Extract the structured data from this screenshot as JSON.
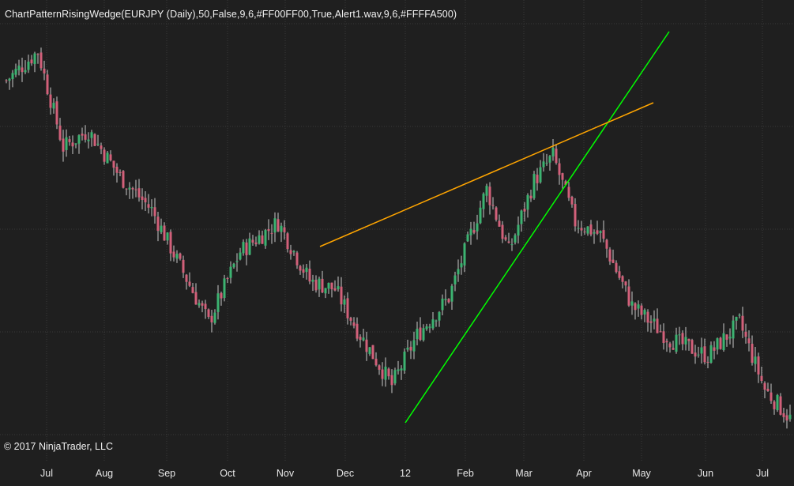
{
  "window": {
    "indicator_label": "ChartPatternRisingWedge(EURJPY (Daily),50,False,9,6,#FF00FF00,True,Alert1.wav,9,6,#FFFFA500)",
    "copyright": "© 2017 NinjaTrader, LLC"
  },
  "x_axis": {
    "labels": [
      "Jul",
      "Aug",
      "Sep",
      "Oct",
      "Nov",
      "Dec",
      "12",
      "Feb",
      "Mar",
      "Apr",
      "May",
      "Jun",
      "Jul"
    ]
  },
  "colors": {
    "background": "#1f1f1f",
    "grid": "#3a3a3a",
    "candle_up": "#3cb371",
    "candle_down": "#d2607a",
    "wick": "#c8c8c8",
    "support_line": "#00ff00",
    "resistance_line": "#ffa500"
  },
  "chart_data": {
    "type": "candlestick",
    "symbol": "EURJPY",
    "timeframe": "Daily",
    "x_tick_labels": [
      "Jul",
      "Aug",
      "Sep",
      "Oct",
      "Nov",
      "Dec",
      "12",
      "Feb",
      "Mar",
      "Apr",
      "May",
      "Jun",
      "Jul"
    ],
    "price_path_relative": [
      {
        "bar": 0,
        "close": 0.86
      },
      {
        "bar": 10,
        "close": 0.93
      },
      {
        "bar": 18,
        "close": 0.7
      },
      {
        "bar": 26,
        "close": 0.74
      },
      {
        "bar": 36,
        "close": 0.63
      },
      {
        "bar": 46,
        "close": 0.55
      },
      {
        "bar": 56,
        "close": 0.4
      },
      {
        "bar": 64,
        "close": 0.28
      },
      {
        "bar": 74,
        "close": 0.45
      },
      {
        "bar": 86,
        "close": 0.52
      },
      {
        "bar": 96,
        "close": 0.38
      },
      {
        "bar": 104,
        "close": 0.36
      },
      {
        "bar": 112,
        "close": 0.25
      },
      {
        "bar": 122,
        "close": 0.13
      },
      {
        "bar": 130,
        "close": 0.25
      },
      {
        "bar": 140,
        "close": 0.34
      },
      {
        "bar": 152,
        "close": 0.6
      },
      {
        "bar": 159,
        "close": 0.45
      },
      {
        "bar": 167,
        "close": 0.62
      },
      {
        "bar": 173,
        "close": 0.68
      },
      {
        "bar": 180,
        "close": 0.52
      },
      {
        "bar": 188,
        "close": 0.49
      },
      {
        "bar": 198,
        "close": 0.32
      },
      {
        "bar": 210,
        "close": 0.24
      },
      {
        "bar": 222,
        "close": 0.2
      },
      {
        "bar": 232,
        "close": 0.28
      },
      {
        "bar": 240,
        "close": 0.12
      },
      {
        "bar": 248,
        "close": 0.05
      }
    ],
    "patterns": [
      {
        "name": "rising-wedge-support",
        "color": "#00ff00"
      },
      {
        "name": "rising-wedge-resistance",
        "color": "#ffa500"
      }
    ],
    "grid": true
  }
}
